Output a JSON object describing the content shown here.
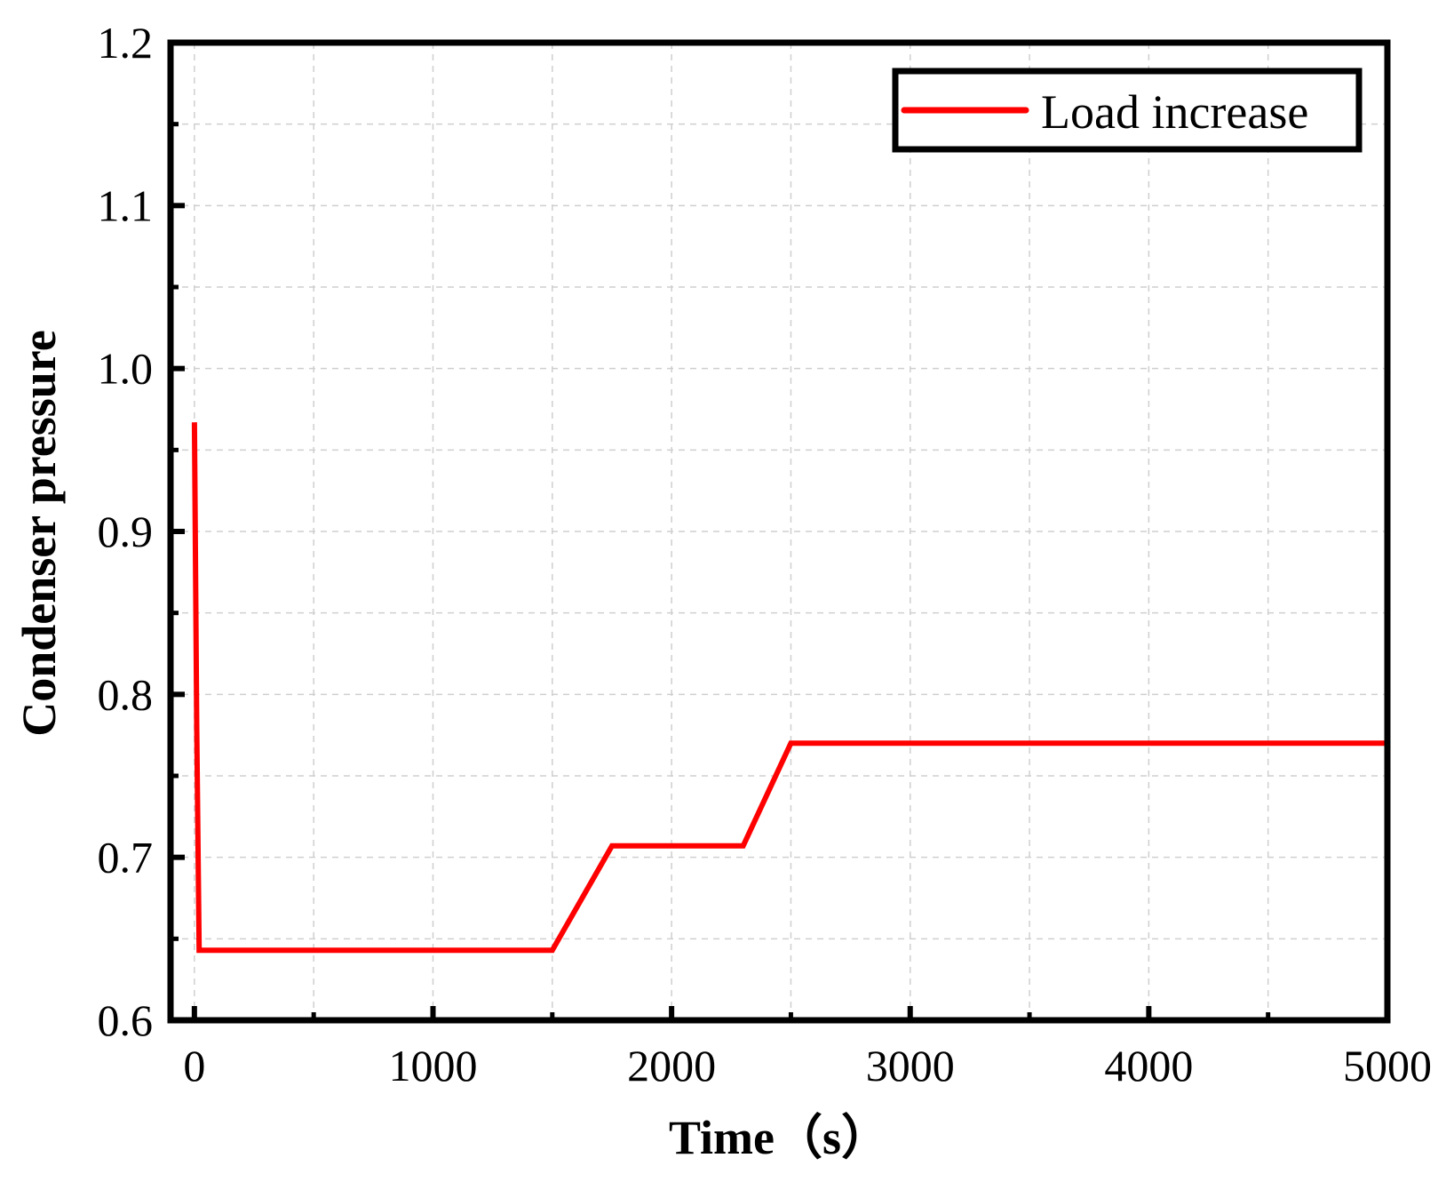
{
  "chart_data": {
    "type": "line",
    "title": "",
    "xlabel": "Time（s）",
    "ylabel": "Condenser pressure",
    "xlim": [
      -100,
      5000
    ],
    "ylim": [
      0.6,
      1.2
    ],
    "x_ticks": [
      0,
      1000,
      2000,
      3000,
      4000,
      5000
    ],
    "x_tick_labels": [
      "0",
      "1000",
      "2000",
      "3000",
      "4000",
      "5000"
    ],
    "x_minor_ticks": [
      500,
      1500,
      2500,
      3500,
      4500
    ],
    "y_ticks": [
      0.6,
      0.7,
      0.8,
      0.9,
      1.0,
      1.1,
      1.2
    ],
    "y_tick_labels": [
      "0.6",
      "0.7",
      "0.8",
      "0.9",
      "1.0",
      "1.1",
      "1.2"
    ],
    "y_minor_ticks": [
      0.65,
      0.75,
      0.85,
      0.95,
      1.05,
      1.15
    ],
    "grid": true,
    "legend_position": "top-right",
    "series": [
      {
        "name": "Load increase",
        "color": "#ff0000",
        "x": [
          0,
          10,
          20,
          1500,
          1750,
          2300,
          2500,
          5000
        ],
        "y": [
          0.967,
          0.78,
          0.643,
          0.643,
          0.707,
          0.707,
          0.77,
          0.77
        ]
      }
    ]
  }
}
